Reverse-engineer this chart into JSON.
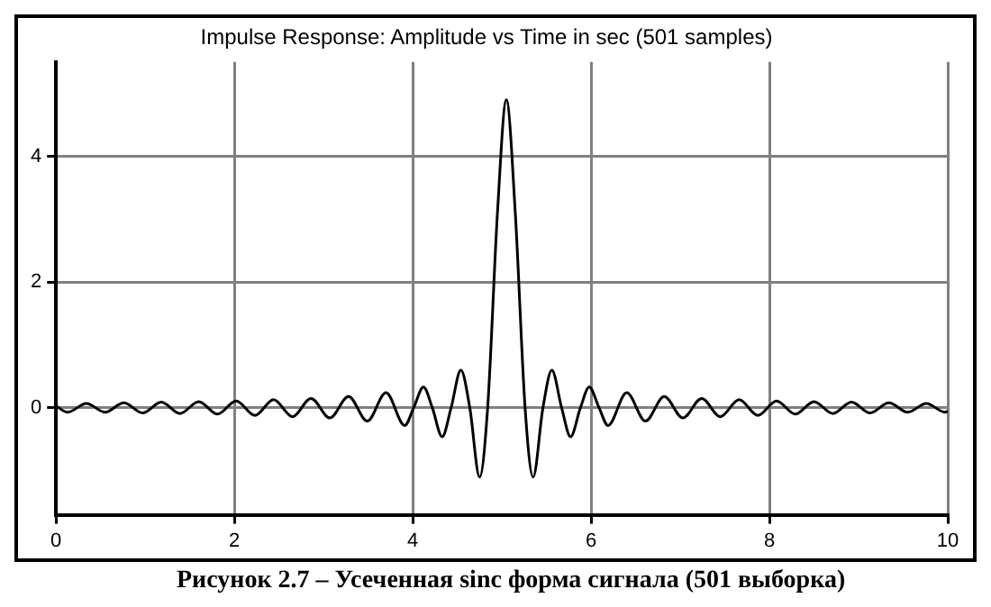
{
  "chart_data": {
    "type": "line",
    "title": "Impulse Response: Amplitude vs Time in sec (501 samples)",
    "annotations": [
      "Рисунок 2.7 – Усеченная sinc форма сигнала (501 выборка)"
    ],
    "x": [
      0,
      0.13,
      0.34,
      0.55,
      0.76,
      0.97,
      1.18,
      1.39,
      1.6,
      1.81,
      2.02,
      2.23,
      2.44,
      2.65,
      2.86,
      3.07,
      3.28,
      3.49,
      3.7,
      3.91,
      4.01,
      4.12,
      4.22,
      4.33,
      4.43,
      4.54,
      4.64,
      4.75,
      4.84,
      4.95,
      5.05,
      5.15,
      5.26,
      5.35,
      5.46,
      5.56,
      5.67,
      5.77,
      5.88,
      5.98,
      6.09,
      6.19,
      6.4,
      6.61,
      6.82,
      7.03,
      7.24,
      7.45,
      7.66,
      7.87,
      8.08,
      8.29,
      8.5,
      8.71,
      8.92,
      9.13,
      9.34,
      9.55,
      9.76,
      9.97,
      10
    ],
    "series": [
      {
        "color": "#000000",
        "values": [
          0.03,
          -0.07,
          0.07,
          -0.07,
          0.08,
          -0.08,
          0.09,
          -0.09,
          0.1,
          -0.1,
          0.11,
          -0.12,
          0.13,
          -0.14,
          0.15,
          -0.16,
          0.18,
          -0.21,
          0.24,
          -0.28,
          0,
          0.33,
          0,
          -0.46,
          0,
          0.6,
          0,
          -1.1,
          0,
          3.1,
          4.9,
          3.1,
          0,
          -1.1,
          0,
          0.6,
          0,
          -0.46,
          0,
          0.33,
          0,
          -0.28,
          0.24,
          -0.21,
          0.18,
          -0.16,
          0.15,
          -0.14,
          0.13,
          -0.12,
          0.11,
          -0.1,
          0.1,
          -0.09,
          0.09,
          -0.08,
          0.08,
          -0.07,
          0.07,
          -0.07,
          -0.05
        ]
      }
    ],
    "xlim": [
      0,
      10
    ],
    "xticks": [
      0,
      2,
      4,
      6,
      8,
      10
    ],
    "ylim": [
      -1.7,
      5.5
    ],
    "yticks": [
      0,
      2,
      4
    ],
    "grid": true,
    "legend": false,
    "marker": "none",
    "line_style": "solid"
  }
}
